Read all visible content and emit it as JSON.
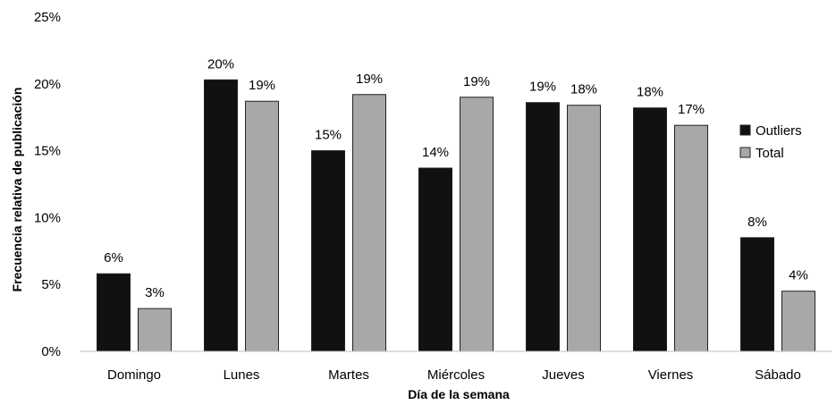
{
  "chart_data": {
    "type": "bar",
    "title": "",
    "xlabel": "Día de la semana",
    "ylabel": "Frecuencia relativa de publicación",
    "categories": [
      "Domingo",
      "Lunes",
      "Martes",
      "Miércoles",
      "Jueves",
      "Viernes",
      "Sábado"
    ],
    "series": [
      {
        "name": "Outliers",
        "color": "#111111",
        "values": [
          5.8,
          20.3,
          15.0,
          13.7,
          18.6,
          18.2,
          8.5
        ],
        "labels": [
          "6%",
          "20%",
          "15%",
          "14%",
          "19%",
          "18%",
          "8%"
        ]
      },
      {
        "name": "Total",
        "color": "#a8a8a8",
        "values": [
          3.2,
          18.7,
          19.2,
          19.0,
          18.4,
          16.9,
          4.5
        ],
        "labels": [
          "3%",
          "19%",
          "19%",
          "19%",
          "18%",
          "17%",
          "4%"
        ]
      }
    ],
    "ylim": [
      0,
      25
    ],
    "yticks": [
      "0%",
      "5%",
      "10%",
      "15%",
      "20%",
      "25%"
    ],
    "grid": false,
    "legend_position": "right"
  }
}
